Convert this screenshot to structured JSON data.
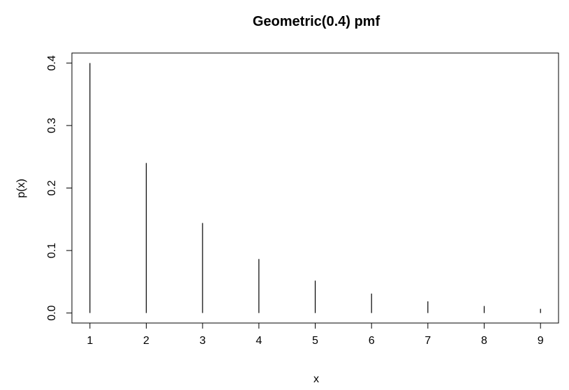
{
  "chart_data": {
    "type": "bar",
    "title": "Geometric(0.4) pmf",
    "xlabel": "x",
    "ylabel": "p(x)",
    "x": [
      1,
      2,
      3,
      4,
      5,
      6,
      7,
      8,
      9
    ],
    "values": [
      0.4,
      0.24,
      0.144,
      0.0864,
      0.0518,
      0.0311,
      0.0187,
      0.0112,
      0.0067
    ],
    "xticks": [
      "1",
      "2",
      "3",
      "4",
      "5",
      "6",
      "7",
      "8",
      "9"
    ],
    "yticks": [
      "0.0",
      "0.1",
      "0.2",
      "0.3",
      "0.4"
    ],
    "ytick_values": [
      0,
      0.1,
      0.2,
      0.3,
      0.4
    ],
    "xlim": [
      0.68,
      9.32
    ],
    "ylim": [
      -0.016,
      0.416
    ],
    "grid": false,
    "legend": "none",
    "color": "#000000"
  }
}
